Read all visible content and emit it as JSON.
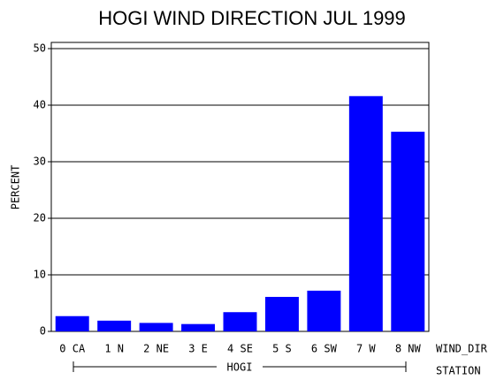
{
  "chart_data": {
    "type": "bar",
    "title": "HOGI WIND DIRECTION JUL 1999",
    "y_label": "PERCENT",
    "x_label": "WIND_DIR",
    "group_label": "HOGI",
    "group_axis_label": "STATION",
    "categories": [
      "0 CA",
      "1 N",
      "2 NE",
      "3 E",
      "4 SE",
      "5 S",
      "6 SW",
      "7 W",
      "8 NW"
    ],
    "values": [
      2.7,
      1.9,
      1.5,
      1.3,
      3.4,
      6.1,
      7.2,
      41.6,
      35.3
    ],
    "color": "#0000ff",
    "ylim": [
      0,
      50
    ],
    "yticks": [
      0,
      10,
      20,
      30,
      40,
      50
    ],
    "grid": true
  }
}
